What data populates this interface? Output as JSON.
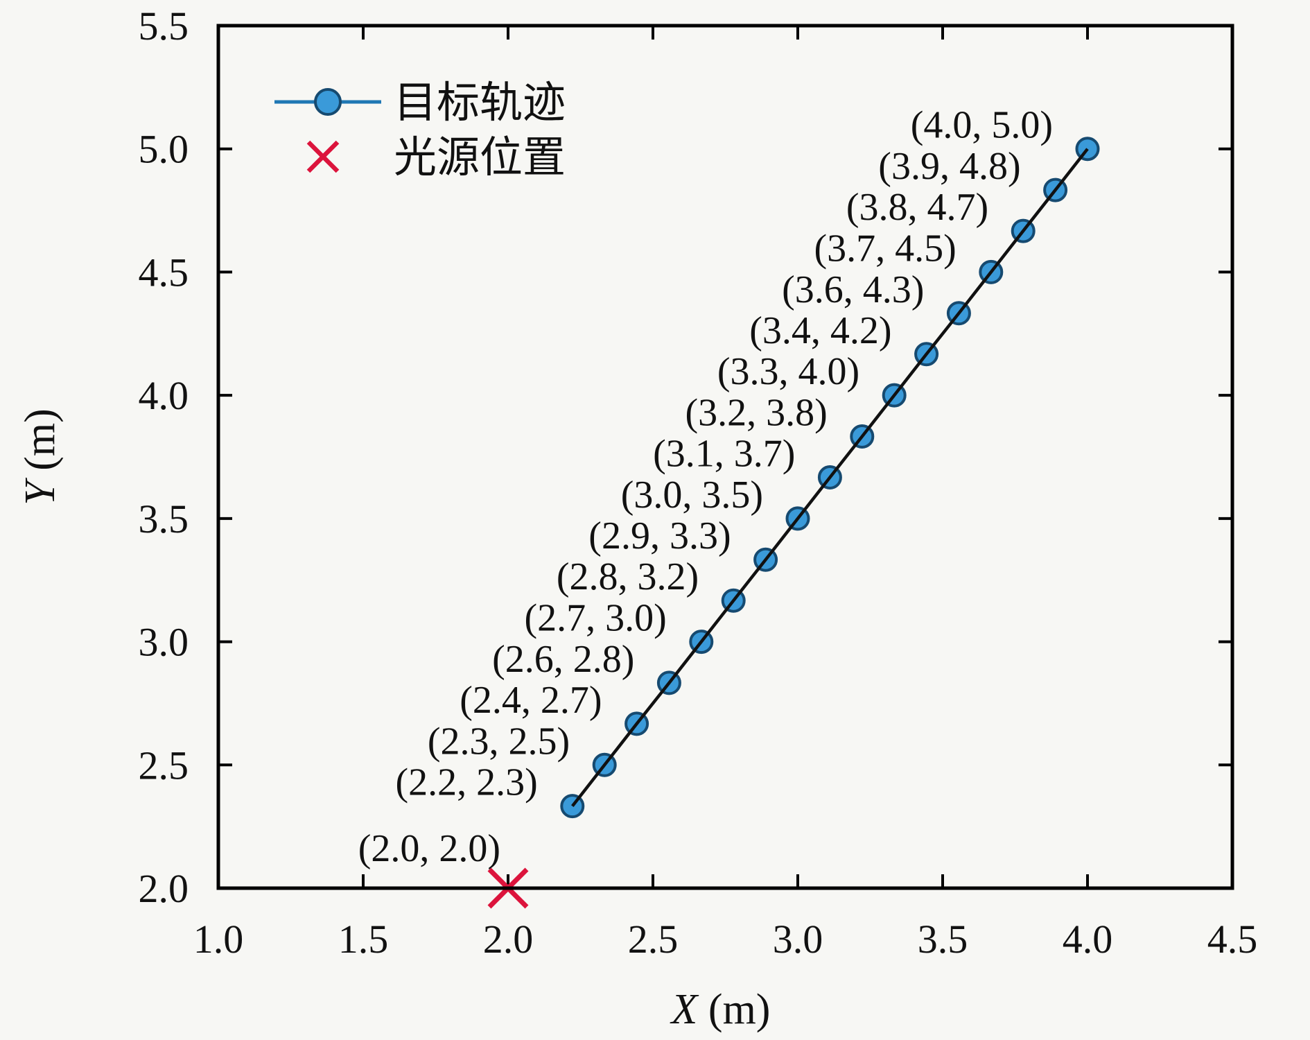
{
  "figure": {
    "background": "#f7f7f4"
  },
  "colors": {
    "axis": "#000000",
    "text": "#111111",
    "trajectory_line": "#111111",
    "marker_fill": "#3a9ad9",
    "marker_edge": "#164a70",
    "legend_line": "#1f77b4",
    "source_marker": "#dc143c"
  },
  "axis": {
    "x_var": "X",
    "x_unit": " (m)",
    "y_var": "Y",
    "y_unit": " (m)"
  },
  "chart_data": {
    "type": "scatter",
    "title": "",
    "xlabel": "X (m)",
    "ylabel": "Y (m)",
    "xlim": [
      1.0,
      4.5
    ],
    "ylim": [
      2.0,
      5.5
    ],
    "x_ticks": [
      "1.0",
      "1.5",
      "2.0",
      "2.5",
      "3.0",
      "3.5",
      "4.0",
      "4.5"
    ],
    "y_ticks": [
      "2.0",
      "2.5",
      "3.0",
      "3.5",
      "4.0",
      "4.5",
      "5.0",
      "5.5"
    ],
    "grid": false,
    "legend_position": "upper-left",
    "series": [
      {
        "name": "目标轨迹",
        "type": "line+markers",
        "marker": "circle",
        "line_color": "#111111",
        "legend_line_color": "#1f77b4",
        "marker_fill": "#3a9ad9",
        "marker_edge": "#164a70",
        "points": [
          {
            "x": 2.222,
            "y": 2.333,
            "label": "(2.2, 2.3)"
          },
          {
            "x": 2.333,
            "y": 2.5,
            "label": "(2.3, 2.5)"
          },
          {
            "x": 2.444,
            "y": 2.667,
            "label": "(2.4, 2.7)"
          },
          {
            "x": 2.556,
            "y": 2.833,
            "label": "(2.6, 2.8)"
          },
          {
            "x": 2.667,
            "y": 3.0,
            "label": "(2.7, 3.0)"
          },
          {
            "x": 2.778,
            "y": 3.167,
            "label": "(2.8, 3.2)"
          },
          {
            "x": 2.889,
            "y": 3.333,
            "label": "(2.9, 3.3)"
          },
          {
            "x": 3.0,
            "y": 3.5,
            "label": "(3.0, 3.5)"
          },
          {
            "x": 3.111,
            "y": 3.667,
            "label": "(3.1, 3.7)"
          },
          {
            "x": 3.222,
            "y": 3.833,
            "label": "(3.2, 3.8)"
          },
          {
            "x": 3.333,
            "y": 4.0,
            "label": "(3.3, 4.0)"
          },
          {
            "x": 3.444,
            "y": 4.167,
            "label": "(3.4, 4.2)"
          },
          {
            "x": 3.556,
            "y": 4.333,
            "label": "(3.6, 4.3)"
          },
          {
            "x": 3.667,
            "y": 4.5,
            "label": "(3.7, 4.5)"
          },
          {
            "x": 3.778,
            "y": 4.667,
            "label": "(3.8, 4.7)"
          },
          {
            "x": 3.889,
            "y": 4.833,
            "label": "(3.9, 4.8)"
          },
          {
            "x": 4.0,
            "y": 5.0,
            "label": "(4.0, 5.0)"
          }
        ]
      },
      {
        "name": "光源位置",
        "type": "markers",
        "marker": "x",
        "color": "#dc143c",
        "points": [
          {
            "x": 2.0,
            "y": 2.0,
            "label": "(2.0, 2.0)"
          }
        ]
      }
    ]
  }
}
